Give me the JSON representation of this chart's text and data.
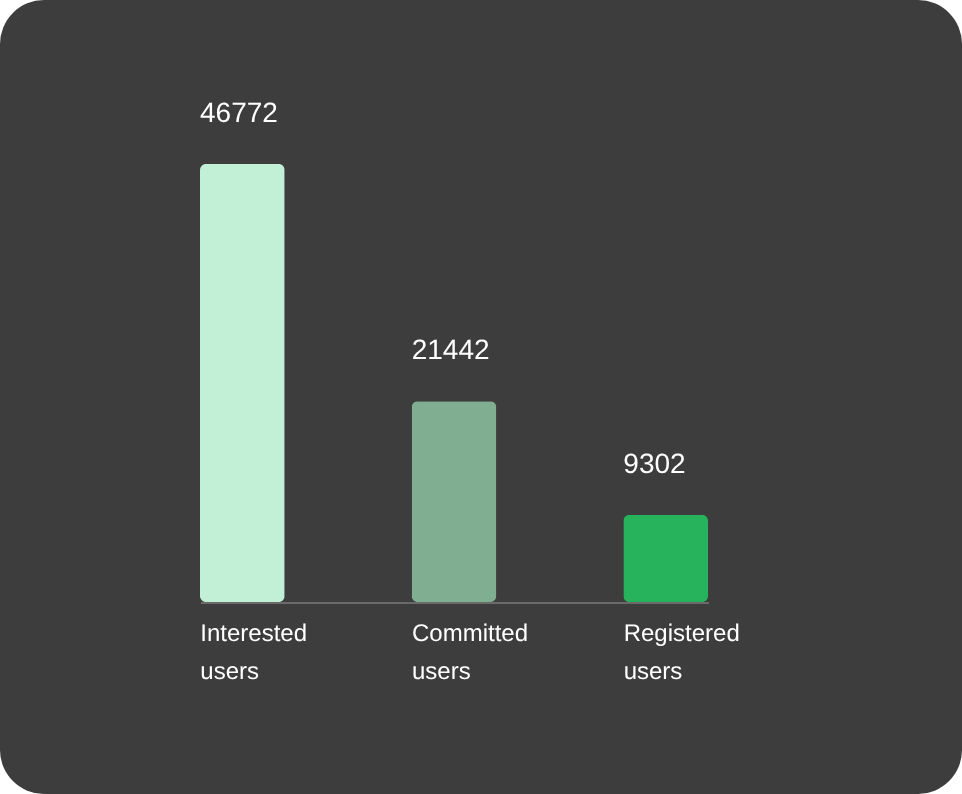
{
  "chart_data": {
    "type": "bar",
    "categories": [
      "Interested users",
      "Committed users",
      "Registered users"
    ],
    "values": [
      46772,
      21442,
      9302
    ],
    "colors": [
      "#c1f0d6",
      "#7fae91",
      "#27b35c"
    ],
    "data_labels": true
  }
}
